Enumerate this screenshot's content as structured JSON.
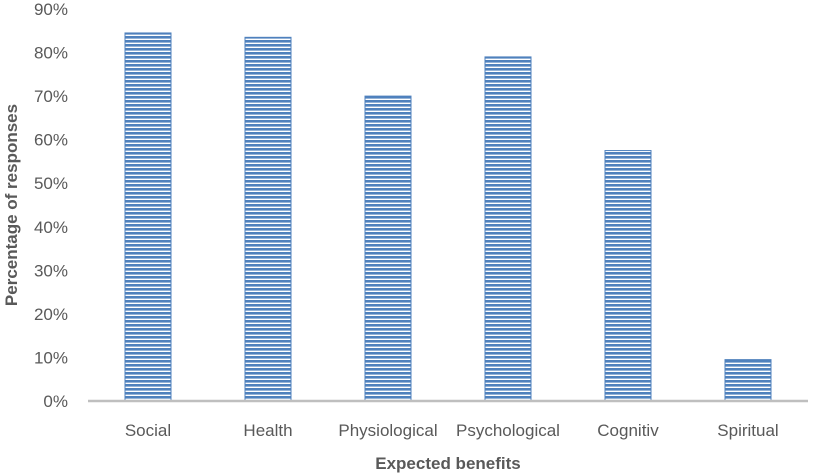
{
  "chart_data": {
    "type": "bar",
    "categories": [
      "Social",
      "Health",
      "Physiological",
      "Psychological",
      "Cognitiv",
      "Spiritual"
    ],
    "values": [
      84.5,
      83.5,
      70,
      79,
      57.5,
      9.5
    ],
    "title": "",
    "xlabel": "Expected benefits",
    "ylabel": "Percentage of responses",
    "ylim": [
      0,
      90
    ],
    "yticks": [
      "0%",
      "10%",
      "20%",
      "30%",
      "40%",
      "50%",
      "60%",
      "70%",
      "80%",
      "90%"
    ],
    "grid": false,
    "legend": "none",
    "bar_color": "#4f81bd",
    "bar_fill_pattern": "horizontal-stripes",
    "axis_color": "#bfbfbf"
  }
}
